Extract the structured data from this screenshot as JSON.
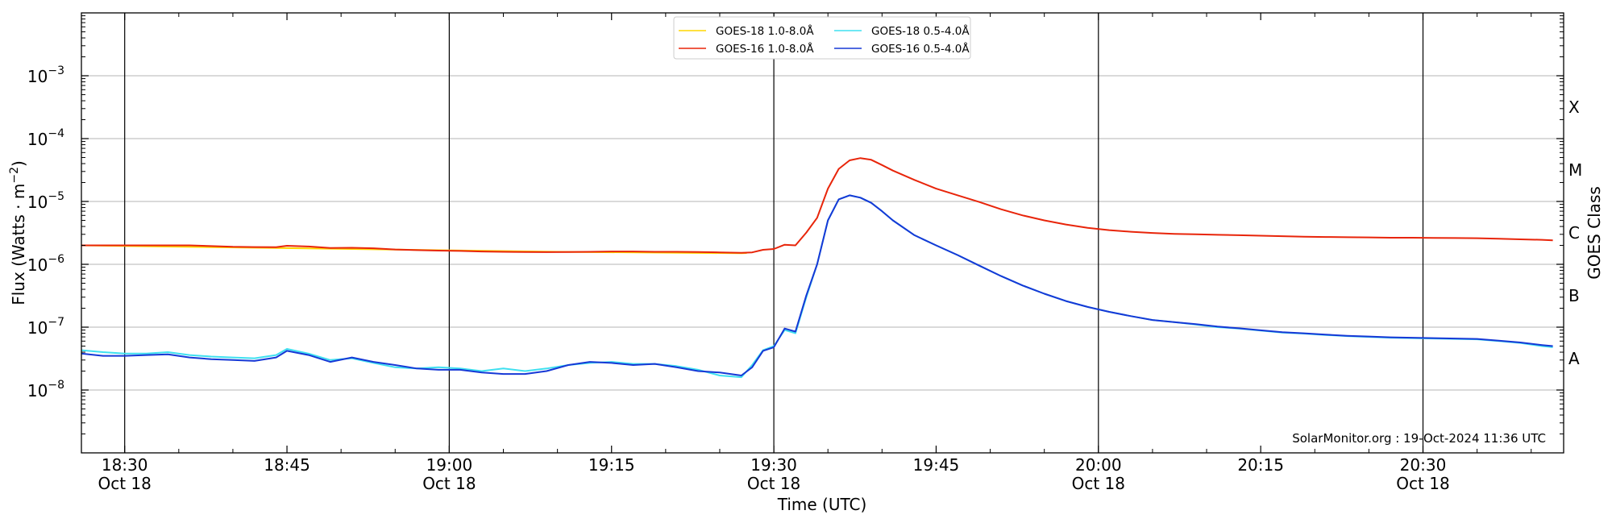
{
  "chart_data": {
    "type": "line",
    "title": "",
    "xlabel": "Time (UTC)",
    "ylabel": "Flux (Watts · m",
    "ylabel_sup": "−2",
    "ylabel_close": ")",
    "right_label": "GOES Class",
    "log_y": true,
    "ylim": [
      1e-09,
      0.01
    ],
    "xlim_minutes": [
      1106,
      1243
    ],
    "grid": "horizontal",
    "legend_position": "top-center",
    "credit": "SolarMonitor.org : 19-Oct-2024 11:36 UTC",
    "y_ticks": [
      {
        "exp": -8,
        "base": "10",
        "power": "−8"
      },
      {
        "exp": -7,
        "base": "10",
        "power": "−7"
      },
      {
        "exp": -6,
        "base": "10",
        "power": "−6"
      },
      {
        "exp": -5,
        "base": "10",
        "power": "−5"
      },
      {
        "exp": -4,
        "base": "10",
        "power": "−4"
      },
      {
        "exp": -3,
        "base": "10",
        "power": "−3"
      }
    ],
    "x_ticks": [
      {
        "minute": 1110,
        "time": "18:30",
        "date": "Oct 18"
      },
      {
        "minute": 1125,
        "time": "18:45",
        "date": ""
      },
      {
        "minute": 1140,
        "time": "19:00",
        "date": "Oct 18"
      },
      {
        "minute": 1155,
        "time": "19:15",
        "date": ""
      },
      {
        "minute": 1170,
        "time": "19:30",
        "date": "Oct 18"
      },
      {
        "minute": 1185,
        "time": "19:45",
        "date": ""
      },
      {
        "minute": 1200,
        "time": "20:00",
        "date": "Oct 18"
      },
      {
        "minute": 1215,
        "time": "20:15",
        "date": ""
      },
      {
        "minute": 1230,
        "time": "20:30",
        "date": "Oct 18"
      }
    ],
    "vlines_minutes": [
      1110,
      1140,
      1170,
      1200,
      1230
    ],
    "goes_classes": [
      {
        "label": "A",
        "exp": -7.5
      },
      {
        "label": "B",
        "exp": -6.5
      },
      {
        "label": "C",
        "exp": -5.5
      },
      {
        "label": "M",
        "exp": -4.5
      },
      {
        "label": "X",
        "exp": -3.5
      }
    ],
    "series": [
      {
        "name": "GOES-18 1.0-8.0Å",
        "color": "#ffd700",
        "x": [
          1106,
          1150,
          1167,
          1167.5
        ],
        "y": [
          2e-06,
          1.58e-06,
          1.5e-06,
          1.51e-06
        ]
      },
      {
        "name": "GOES-16 1.0-8.0Å",
        "color": "#e8250a",
        "x": [
          1106,
          1109,
          1112,
          1114,
          1116,
          1118,
          1120,
          1122,
          1124,
          1125,
          1127,
          1129,
          1131,
          1133,
          1135,
          1137,
          1139,
          1141,
          1143,
          1145,
          1147,
          1149,
          1151,
          1153,
          1155,
          1157,
          1159,
          1161,
          1163,
          1165,
          1167,
          1168,
          1169,
          1170,
          1171,
          1172,
          1173,
          1174,
          1175,
          1176,
          1177,
          1178,
          1179,
          1180,
          1181,
          1183,
          1185,
          1187,
          1189,
          1191,
          1193,
          1195,
          1197,
          1199,
          1201,
          1203,
          1205,
          1207,
          1209,
          1211,
          1213,
          1215,
          1217,
          1219,
          1221,
          1223,
          1225,
          1227,
          1229,
          1231,
          1233,
          1235,
          1237,
          1239,
          1241,
          1242
        ],
        "y": [
          2e-06,
          2e-06,
          2e-06,
          2e-06,
          2e-06,
          1.95e-06,
          1.9e-06,
          1.88e-06,
          1.87e-06,
          1.97e-06,
          1.92e-06,
          1.82e-06,
          1.83e-06,
          1.8e-06,
          1.72e-06,
          1.68e-06,
          1.65e-06,
          1.63e-06,
          1.6e-06,
          1.58e-06,
          1.57e-06,
          1.56e-06,
          1.57e-06,
          1.58e-06,
          1.6e-06,
          1.6e-06,
          1.58e-06,
          1.58e-06,
          1.57e-06,
          1.55e-06,
          1.52e-06,
          1.55e-06,
          1.7e-06,
          1.75e-06,
          2.05e-06,
          2e-06,
          3.2e-06,
          5.5e-06,
          1.6e-05,
          3.3e-05,
          4.5e-05,
          4.9e-05,
          4.6e-05,
          3.8e-05,
          3.1e-05,
          2.2e-05,
          1.6e-05,
          1.25e-05,
          9.8e-06,
          7.5e-06,
          6e-06,
          5e-06,
          4.3e-06,
          3.8e-06,
          3.5e-06,
          3.3e-06,
          3.15e-06,
          3.05e-06,
          3e-06,
          2.95e-06,
          2.9e-06,
          2.85e-06,
          2.8e-06,
          2.75e-06,
          2.72e-06,
          2.7e-06,
          2.68e-06,
          2.65e-06,
          2.65e-06,
          2.63e-06,
          2.62e-06,
          2.6e-06,
          2.55e-06,
          2.5e-06,
          2.45e-06,
          2.4e-06
        ]
      },
      {
        "name": "GOES-18 0.5-4.0Å",
        "color": "#3fe0f0",
        "x": [
          1106,
          1108,
          1110,
          1112,
          1114,
          1116,
          1118,
          1120,
          1122,
          1124,
          1125,
          1127,
          1129,
          1131,
          1133,
          1135,
          1137,
          1139,
          1141,
          1143,
          1145,
          1147,
          1149,
          1151,
          1153,
          1155,
          1157,
          1159,
          1161,
          1163,
          1165,
          1167,
          1168,
          1169,
          1170,
          1171,
          1172,
          1173,
          1174,
          1175,
          1176,
          1177,
          1178,
          1179,
          1180,
          1181,
          1183,
          1185,
          1187,
          1189,
          1191,
          1193,
          1195,
          1197,
          1199,
          1201,
          1203,
          1205,
          1207,
          1209,
          1211,
          1213,
          1215,
          1217,
          1219,
          1221,
          1223,
          1225,
          1227,
          1229,
          1231,
          1233,
          1235,
          1237,
          1239,
          1241,
          1242
        ],
        "y": [
          4.3e-08,
          4e-08,
          3.8e-08,
          3.8e-08,
          4e-08,
          3.6e-08,
          3.4e-08,
          3.3e-08,
          3.2e-08,
          3.6e-08,
          4.5e-08,
          3.8e-08,
          3e-08,
          3.2e-08,
          2.7e-08,
          2.3e-08,
          2.2e-08,
          2.3e-08,
          2.2e-08,
          2e-08,
          2.2e-08,
          2e-08,
          2.2e-08,
          2.5e-08,
          2.7e-08,
          2.8e-08,
          2.6e-08,
          2.6e-08,
          2.4e-08,
          2.1e-08,
          1.7e-08,
          1.6e-08,
          2.5e-08,
          4.3e-08,
          5e-08,
          9e-08,
          8e-08,
          3e-07,
          1e-06,
          5e-06,
          1.08e-05,
          1.25e-05,
          1.15e-05,
          9.5e-06,
          7e-06,
          5e-06,
          2.9e-06,
          2e-06,
          1.4e-06,
          9.5e-07,
          6.5e-07,
          4.6e-07,
          3.4e-07,
          2.6e-07,
          2.1e-07,
          1.75e-07,
          1.5e-07,
          1.3e-07,
          1.2e-07,
          1.1e-07,
          1e-07,
          9.5e-08,
          8.8e-08,
          8.2e-08,
          7.9e-08,
          7.5e-08,
          7.2e-08,
          7e-08,
          6.8e-08,
          6.7e-08,
          6.6e-08,
          6.5e-08,
          6.4e-08,
          6e-08,
          5.6e-08,
          5e-08,
          4.8e-08
        ]
      },
      {
        "name": "GOES-16 0.5-4.0Å",
        "color": "#1638d6",
        "x": [
          1106,
          1108,
          1110,
          1112,
          1114,
          1116,
          1118,
          1120,
          1122,
          1124,
          1125,
          1127,
          1129,
          1131,
          1133,
          1135,
          1137,
          1139,
          1141,
          1143,
          1145,
          1147,
          1149,
          1151,
          1153,
          1155,
          1157,
          1159,
          1161,
          1163,
          1165,
          1167,
          1168,
          1169,
          1170,
          1171,
          1172,
          1173,
          1174,
          1175,
          1176,
          1177,
          1178,
          1179,
          1180,
          1181,
          1183,
          1185,
          1187,
          1189,
          1191,
          1193,
          1195,
          1197,
          1199,
          1201,
          1203,
          1205,
          1207,
          1209,
          1211,
          1213,
          1215,
          1217,
          1219,
          1221,
          1223,
          1225,
          1227,
          1229,
          1231,
          1233,
          1235,
          1237,
          1239,
          1241,
          1242
        ],
        "y": [
          3.8e-08,
          3.5e-08,
          3.5e-08,
          3.6e-08,
          3.7e-08,
          3.3e-08,
          3.1e-08,
          3e-08,
          2.9e-08,
          3.3e-08,
          4.2e-08,
          3.6e-08,
          2.8e-08,
          3.3e-08,
          2.8e-08,
          2.5e-08,
          2.2e-08,
          2.1e-08,
          2.1e-08,
          1.9e-08,
          1.8e-08,
          1.8e-08,
          2e-08,
          2.5e-08,
          2.8e-08,
          2.7e-08,
          2.5e-08,
          2.6e-08,
          2.3e-08,
          2e-08,
          1.9e-08,
          1.7e-08,
          2.3e-08,
          4.2e-08,
          4.8e-08,
          9.5e-08,
          8.5e-08,
          3.2e-07,
          1e-06,
          5e-06,
          1.08e-05,
          1.25e-05,
          1.15e-05,
          9.5e-06,
          7e-06,
          5e-06,
          2.9e-06,
          2e-06,
          1.4e-06,
          9.5e-07,
          6.5e-07,
          4.6e-07,
          3.4e-07,
          2.6e-07,
          2.1e-07,
          1.75e-07,
          1.5e-07,
          1.3e-07,
          1.2e-07,
          1.12e-07,
          1.02e-07,
          9.6e-08,
          8.9e-08,
          8.3e-08,
          8e-08,
          7.6e-08,
          7.3e-08,
          7.1e-08,
          6.9e-08,
          6.8e-08,
          6.7e-08,
          6.6e-08,
          6.5e-08,
          6.1e-08,
          5.7e-08,
          5.2e-08,
          5e-08
        ]
      }
    ]
  }
}
